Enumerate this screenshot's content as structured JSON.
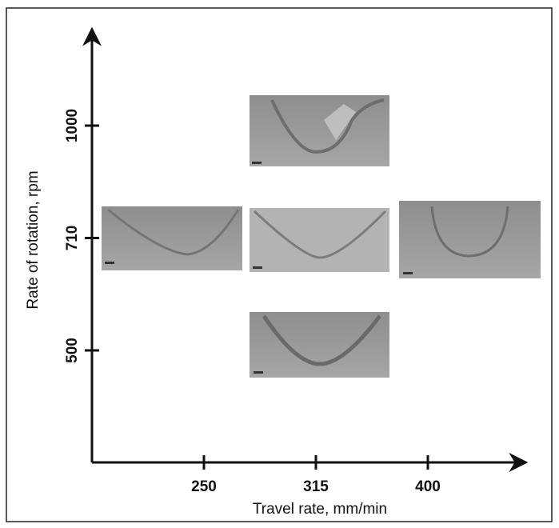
{
  "x_axis": {
    "title": "Travel rate, mm/min",
    "ticks": [
      250,
      315,
      400
    ]
  },
  "y_axis": {
    "title": "Rate of rotation, rpm",
    "ticks": [
      500,
      710,
      1000
    ]
  }
}
